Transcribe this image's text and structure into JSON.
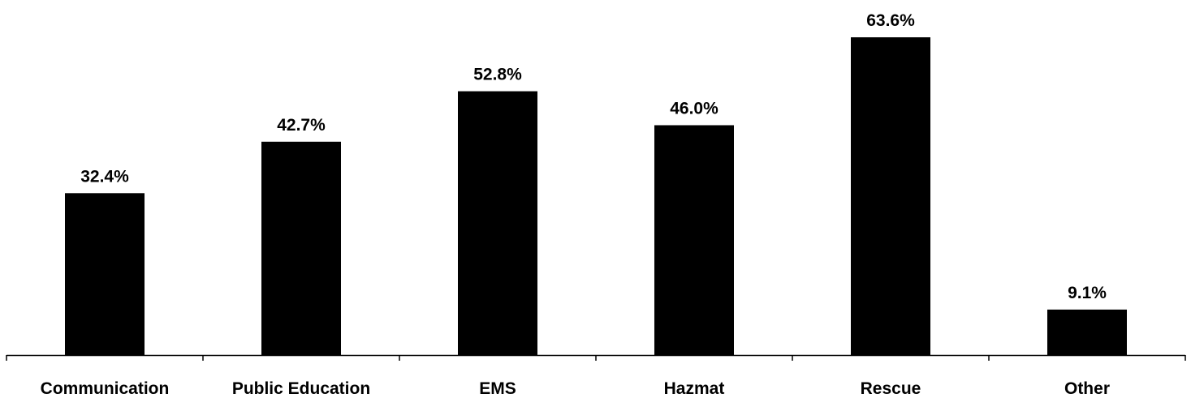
{
  "colors": {
    "bar": "#000000",
    "axis": "#000000",
    "background": "#ffffff"
  },
  "chart_data": {
    "type": "bar",
    "title": "",
    "xlabel": "",
    "ylabel": "",
    "categories": [
      "Communication",
      "Public Education",
      "EMS",
      "Hazmat",
      "Rescue",
      "Other"
    ],
    "values": [
      32.4,
      42.7,
      52.8,
      46.0,
      63.6,
      9.1
    ],
    "value_labels": [
      "32.4%",
      "42.7%",
      "52.8%",
      "46.0%",
      "63.6%",
      "9.1%"
    ],
    "unit": "%",
    "ylim": [
      0,
      70
    ],
    "grid": false,
    "legend": "none",
    "data_labels": "above bars"
  }
}
